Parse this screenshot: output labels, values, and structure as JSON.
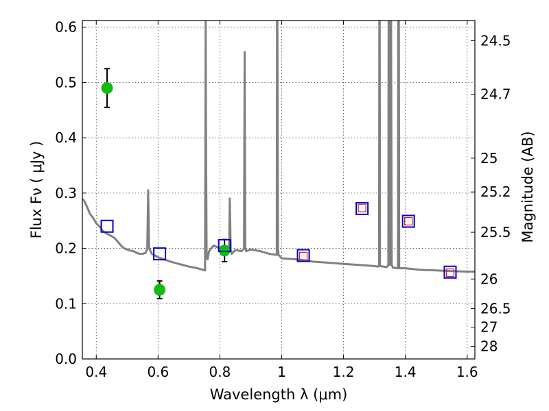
{
  "chart_data": {
    "type": "scatter",
    "xlabel": "Wavelength  λ (μm)",
    "ylabel": "Flux  Fν  ( μJy )",
    "y2label": "Magnitude (AB)",
    "xlim": [
      0.355,
      1.625
    ],
    "ylim": [
      0.0,
      0.612
    ],
    "grid": true,
    "x_ticks": [
      0.4,
      0.6,
      0.8,
      1.0,
      1.2,
      1.4,
      1.6
    ],
    "x_tick_labels": [
      "0.4",
      "0.6",
      "0.8",
      "1",
      "1.2",
      "1.4",
      "1.6"
    ],
    "y_ticks": [
      0.0,
      0.1,
      0.2,
      0.3,
      0.4,
      0.5,
      0.6
    ],
    "y_tick_labels": [
      "0.0",
      "0.1",
      "0.2",
      "0.3",
      "0.4",
      "0.5",
      "0.6"
    ],
    "y2_ticks": [
      24.5,
      24.7,
      25,
      25.2,
      25.5,
      26,
      26.5,
      27,
      28
    ],
    "y2_tick_labels": [
      "24.5",
      "24.7",
      "25",
      "25.2",
      "25.5",
      "26",
      "26.5",
      "27",
      "28"
    ],
    "series": [
      {
        "kind": "line",
        "color": "#808080",
        "x": [
          0.355,
          0.362,
          0.37,
          0.38,
          0.39,
          0.4,
          0.41,
          0.42,
          0.43,
          0.44,
          0.45,
          0.46,
          0.47,
          0.48,
          0.49,
          0.5,
          0.51,
          0.52,
          0.53,
          0.54,
          0.55,
          0.56,
          0.565,
          0.568,
          0.571,
          0.58,
          0.6,
          0.62,
          0.64,
          0.66,
          0.68,
          0.7,
          0.72,
          0.74,
          0.752,
          0.753,
          0.754,
          0.755,
          0.757,
          0.76,
          0.765,
          0.78,
          0.8,
          0.83,
          0.832,
          0.835,
          0.838,
          0.85,
          0.87,
          0.878,
          0.88,
          0.882,
          0.885,
          0.9,
          0.93,
          0.96,
          0.984,
          0.985,
          0.986,
          0.988,
          0.99,
          1.0,
          1.05,
          1.1,
          1.15,
          1.2,
          1.25,
          1.3,
          1.31,
          1.315,
          1.316,
          1.317,
          1.318,
          1.34,
          1.345,
          1.346,
          1.348,
          1.35,
          1.352,
          1.354,
          1.356,
          1.36,
          1.376,
          1.377,
          1.378,
          1.379,
          1.38,
          1.4,
          1.45,
          1.5,
          1.55,
          1.6,
          1.625
        ],
        "y": [
          0.29,
          0.285,
          0.275,
          0.262,
          0.255,
          0.245,
          0.24,
          0.232,
          0.228,
          0.225,
          0.222,
          0.218,
          0.212,
          0.205,
          0.2,
          0.198,
          0.196,
          0.195,
          0.192,
          0.19,
          0.19,
          0.192,
          0.2,
          0.305,
          0.2,
          0.19,
          0.184,
          0.18,
          0.176,
          0.173,
          0.17,
          0.167,
          0.165,
          0.162,
          0.16,
          0.4,
          0.612,
          0.4,
          0.185,
          0.18,
          0.195,
          0.205,
          0.2,
          0.198,
          0.29,
          0.198,
          0.19,
          0.197,
          0.195,
          0.2,
          0.555,
          0.2,
          0.195,
          0.198,
          0.195,
          0.19,
          0.188,
          0.612,
          0.612,
          0.2,
          0.188,
          0.182,
          0.18,
          0.176,
          0.174,
          0.172,
          0.17,
          0.168,
          0.167,
          0.168,
          0.612,
          0.612,
          0.168,
          0.166,
          0.17,
          0.612,
          0.612,
          0.17,
          0.612,
          0.612,
          0.17,
          0.165,
          0.164,
          0.612,
          0.612,
          0.612,
          0.164,
          0.164,
          0.161,
          0.16,
          0.159,
          0.158,
          0.158
        ]
      },
      {
        "kind": "markers",
        "marker": "circle",
        "color": "#11bb11",
        "x": [
          0.435,
          0.605,
          0.815
        ],
        "y": [
          0.49,
          0.125,
          0.196
        ],
        "yerr": [
          0.035,
          0.016,
          0.02
        ]
      },
      {
        "kind": "markers",
        "marker": "open-square",
        "color": "#0000cc",
        "x": [
          0.435,
          0.605,
          0.815,
          1.07,
          1.26,
          1.41,
          1.545
        ],
        "y": [
          0.24,
          0.19,
          0.205,
          0.187,
          0.272,
          0.249,
          0.157
        ]
      },
      {
        "kind": "markers",
        "marker": "open-square-small",
        "color": "#dd2222",
        "x": [
          1.07,
          1.26,
          1.41,
          1.545
        ],
        "y": [
          0.186,
          0.273,
          0.249,
          0.156
        ]
      }
    ]
  }
}
